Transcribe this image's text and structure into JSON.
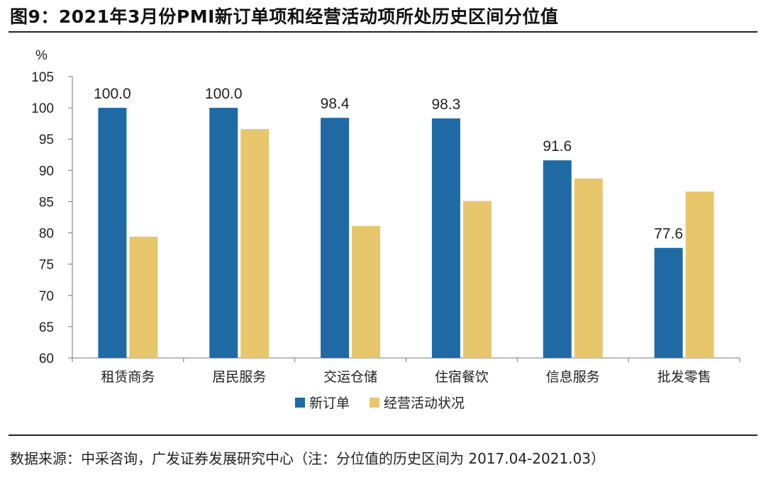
{
  "header": {
    "title": "图9：2021年3月份PMI新订单项和经营活动项所处历史区间分位值"
  },
  "footer": {
    "source": "数据来源：中采咨询，广发证券发展研究中心（注：分位值的历史区间为 2017.04-2021.03）"
  },
  "chart_data": {
    "type": "bar",
    "ylabel": "%",
    "ylim": [
      60,
      105
    ],
    "yticks": [
      60,
      65,
      70,
      75,
      80,
      85,
      90,
      95,
      100,
      105
    ],
    "categories": [
      "租赁商务",
      "居民服务",
      "交运仓储",
      "住宿餐饮",
      "信息服务",
      "批发零售"
    ],
    "series": [
      {
        "name": "新订单",
        "color": "#1F6AA5",
        "values": [
          100.0,
          100.0,
          98.4,
          98.3,
          91.6,
          77.6
        ],
        "data_labels": [
          "100.0",
          "100.0",
          "98.4",
          "98.3",
          "91.6",
          "77.6"
        ]
      },
      {
        "name": "经营活动状况",
        "color": "#E8C66C",
        "values": [
          79.4,
          96.6,
          81.1,
          85.1,
          88.7,
          86.6
        ]
      }
    ],
    "legend_position": "bottom",
    "grid": false
  }
}
